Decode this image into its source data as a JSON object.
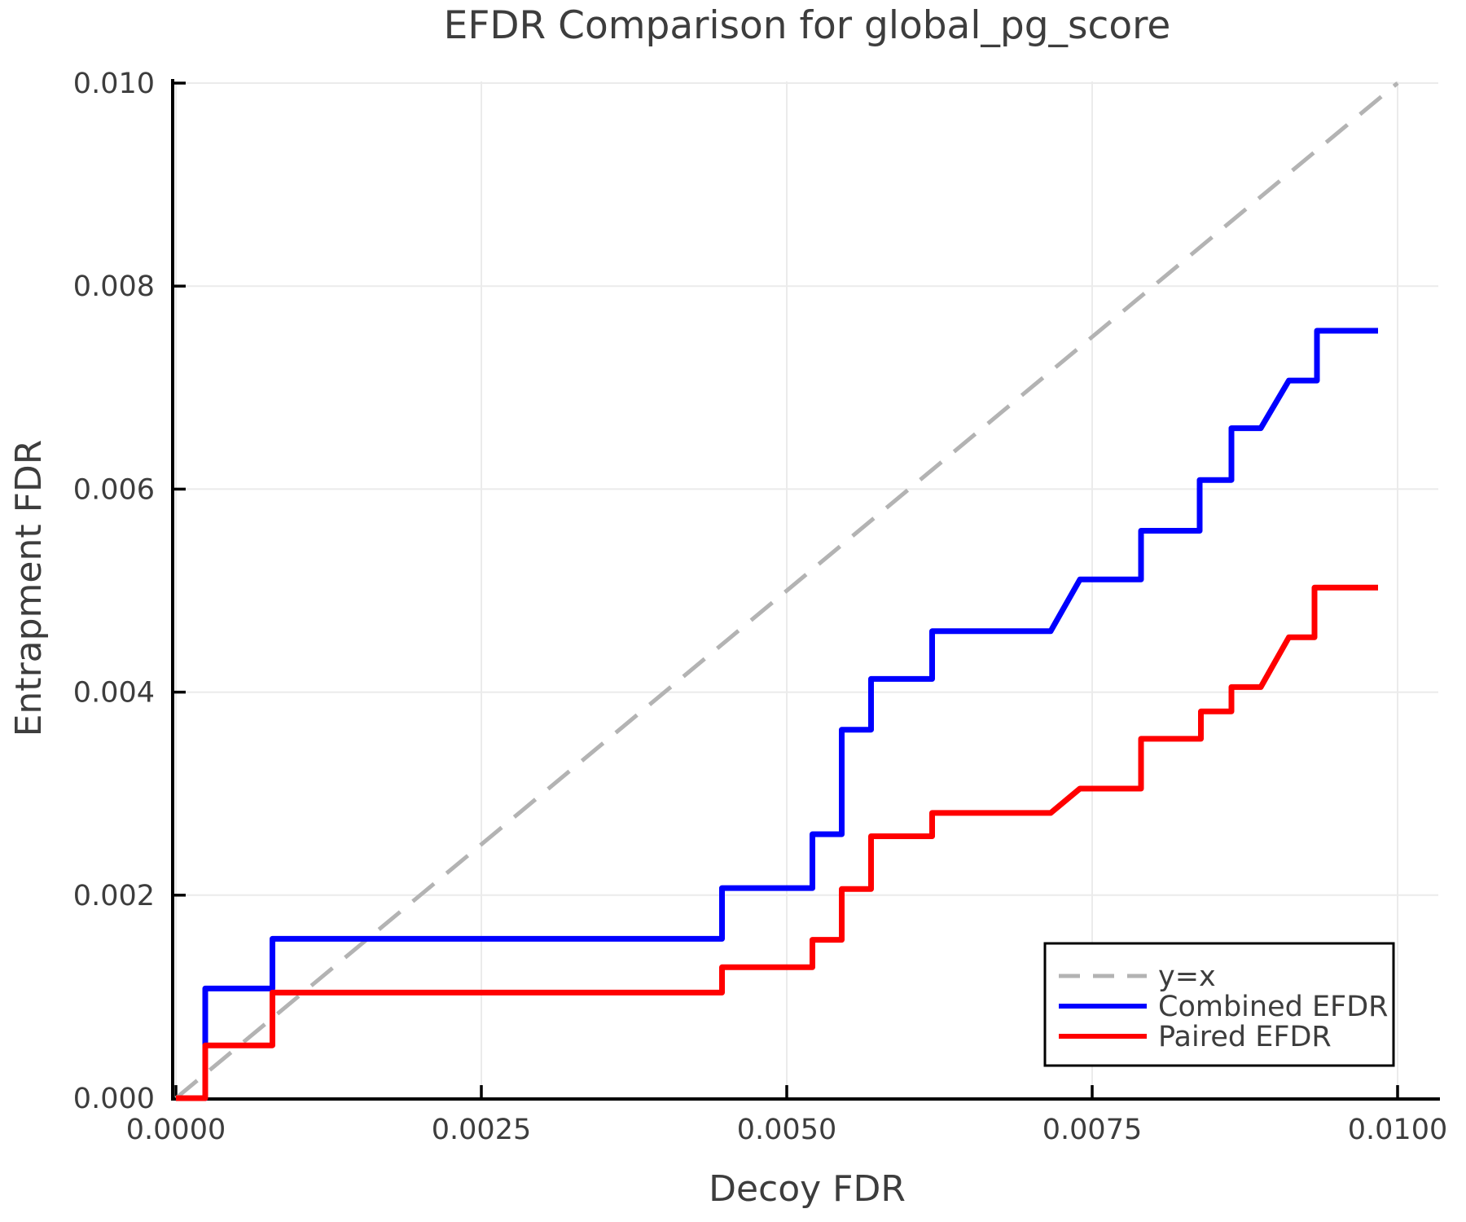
{
  "colors": {
    "background": "#ffffff",
    "grid": "#ebebeb",
    "spine": "#000000",
    "text": "#3d3d3d",
    "identity_line": "#b3b3b3",
    "combined": "#0000ff",
    "paired": "#ff0000"
  },
  "chart_data": {
    "type": "line",
    "title": "EFDR Comparison for global_pg_score",
    "xlabel": "Decoy FDR",
    "ylabel": "Entrapment FDR",
    "xlim": [
      0,
      0.0104
    ],
    "ylim": [
      0,
      0.01005
    ],
    "grid": true,
    "x_ticks": {
      "values": [
        0.0,
        0.0025,
        0.005,
        0.0075,
        0.01
      ],
      "labels": [
        "0.0000",
        "0.0025",
        "0.0050",
        "0.0075",
        "0.0100"
      ]
    },
    "y_ticks": {
      "values": [
        0.0,
        0.002,
        0.004,
        0.006,
        0.008,
        0.01
      ],
      "labels": [
        "0.000",
        "0.002",
        "0.004",
        "0.006",
        "0.008",
        "0.010"
      ]
    },
    "legend": {
      "position": "lower right",
      "entries": [
        {
          "label": "y=x",
          "color": "#b3b3b3",
          "dashed": true
        },
        {
          "label": "Combined EFDR",
          "color": "#0000ff",
          "dashed": false
        },
        {
          "label": "Paired EFDR",
          "color": "#ff0000",
          "dashed": false
        }
      ]
    },
    "series": [
      {
        "name": "y=x",
        "style": "dashed",
        "color": "#b3b3b3",
        "width": 5,
        "points": [
          [
            0.0,
            0.0
          ],
          [
            0.01,
            0.01
          ]
        ]
      },
      {
        "name": "Combined EFDR",
        "style": "solid",
        "color": "#0000ff",
        "width": 7,
        "points": [
          [
            0.0,
            0.0
          ],
          [
            0.00024,
            0.0
          ],
          [
            0.00024,
            0.00108
          ],
          [
            0.00079,
            0.00108
          ],
          [
            0.00079,
            0.00157
          ],
          [
            0.00447,
            0.00157
          ],
          [
            0.00447,
            0.00207
          ],
          [
            0.00521,
            0.00207
          ],
          [
            0.00521,
            0.0026
          ],
          [
            0.00545,
            0.0026
          ],
          [
            0.00545,
            0.00363
          ],
          [
            0.00569,
            0.00363
          ],
          [
            0.00569,
            0.00413
          ],
          [
            0.00619,
            0.00413
          ],
          [
            0.00619,
            0.0046
          ],
          [
            0.00716,
            0.0046
          ],
          [
            0.0074,
            0.00511
          ],
          [
            0.0079,
            0.00511
          ],
          [
            0.0079,
            0.00559
          ],
          [
            0.00838,
            0.00559
          ],
          [
            0.00838,
            0.00609
          ],
          [
            0.00864,
            0.00609
          ],
          [
            0.00864,
            0.0066
          ],
          [
            0.00888,
            0.0066
          ],
          [
            0.00911,
            0.00707
          ],
          [
            0.00934,
            0.00707
          ],
          [
            0.00934,
            0.00756
          ],
          [
            0.00984,
            0.00756
          ]
        ]
      },
      {
        "name": "Paired EFDR",
        "style": "solid",
        "color": "#ff0000",
        "width": 7,
        "points": [
          [
            0.0,
            0.0
          ],
          [
            0.00024,
            0.0
          ],
          [
            0.00024,
            0.00052
          ],
          [
            0.00079,
            0.00052
          ],
          [
            0.00079,
            0.00104
          ],
          [
            0.00447,
            0.00104
          ],
          [
            0.00447,
            0.00129
          ],
          [
            0.00521,
            0.00129
          ],
          [
            0.00521,
            0.00156
          ],
          [
            0.00545,
            0.00156
          ],
          [
            0.00545,
            0.00206
          ],
          [
            0.00569,
            0.00206
          ],
          [
            0.00569,
            0.00258
          ],
          [
            0.00619,
            0.00258
          ],
          [
            0.00619,
            0.00281
          ],
          [
            0.00716,
            0.00281
          ],
          [
            0.0074,
            0.00305
          ],
          [
            0.0079,
            0.00305
          ],
          [
            0.0079,
            0.00354
          ],
          [
            0.00839,
            0.00354
          ],
          [
            0.00839,
            0.00381
          ],
          [
            0.00864,
            0.00381
          ],
          [
            0.00864,
            0.00405
          ],
          [
            0.00888,
            0.00405
          ],
          [
            0.00911,
            0.00454
          ],
          [
            0.00932,
            0.00454
          ],
          [
            0.00932,
            0.00503
          ],
          [
            0.00984,
            0.00503
          ]
        ]
      }
    ]
  }
}
